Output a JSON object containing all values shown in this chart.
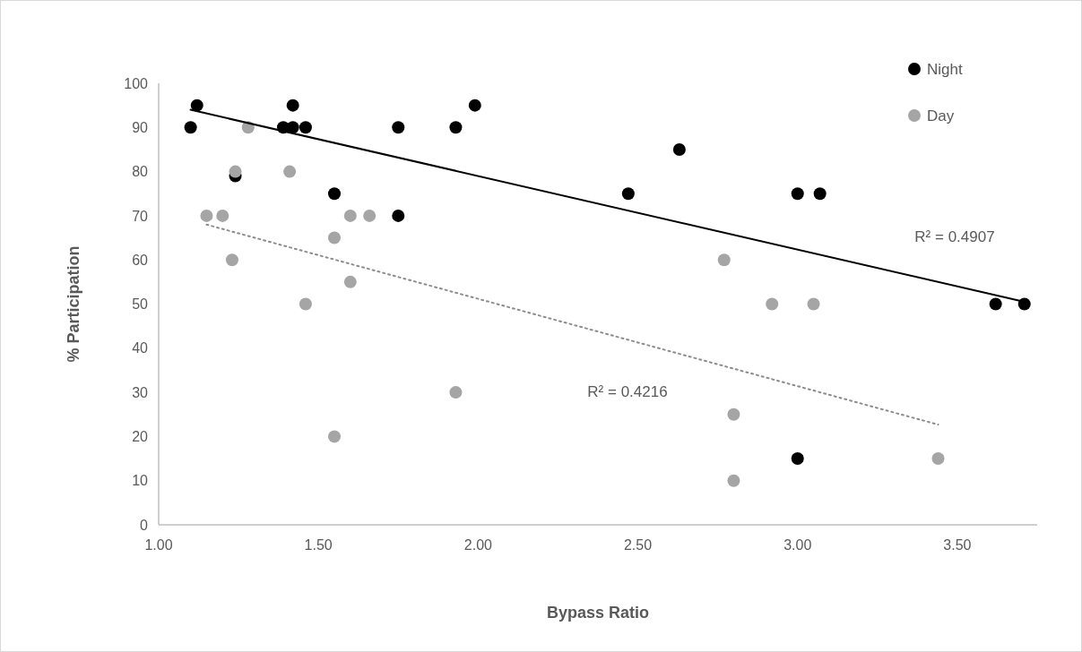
{
  "chart_data": {
    "type": "scatter",
    "xlabel": "Bypass Ratio",
    "ylabel": "% Participation",
    "xlim": [
      1,
      3.75
    ],
    "xticks": [
      {
        "value": 1,
        "label": "1.00"
      },
      {
        "value": 1.5,
        "label": "1.50"
      },
      {
        "value": 2,
        "label": "2.00"
      },
      {
        "value": 2.5,
        "label": "2.50"
      },
      {
        "value": 3,
        "label": "3.00"
      },
      {
        "value": 3.5,
        "label": "3.50"
      }
    ],
    "ylim": [
      0,
      100
    ],
    "yticks": [
      0,
      10,
      20,
      30,
      40,
      50,
      60,
      70,
      80,
      90,
      100
    ],
    "grid": false,
    "legend": "top right",
    "marker": "circle",
    "series": [
      {
        "name": "Night",
        "color": "#000000",
        "x": [
          1.1,
          1.12,
          1.24,
          1.39,
          1.42,
          1.42,
          1.46,
          1.55,
          1.75,
          1.75,
          1.93,
          1.99,
          2.47,
          2.63,
          3.0,
          3.07,
          3.0,
          3.62,
          3.71
        ],
        "values": [
          90,
          95,
          79,
          90,
          90,
          95,
          90,
          75,
          90,
          70,
          90,
          95,
          75,
          85,
          75,
          75,
          15,
          50,
          50
        ]
      },
      {
        "name": "Day",
        "color": "#a5a5a5",
        "x": [
          1.28,
          1.24,
          1.41,
          1.15,
          1.2,
          1.6,
          1.66,
          1.55,
          1.23,
          1.6,
          1.46,
          1.93,
          1.55,
          2.77,
          2.92,
          3.05,
          2.8,
          2.8,
          3.44
        ],
        "values": [
          90,
          80,
          80,
          70,
          70,
          70,
          70,
          65,
          60,
          55,
          50,
          30,
          20,
          60,
          50,
          50,
          25,
          10,
          15
        ]
      },
      {
        "type": "line",
        "color": "#000000",
        "line_style": "solid",
        "marker": "none",
        "x": [
          1.1,
          3.71
        ],
        "values": [
          94,
          50.5
        ]
      },
      {
        "type": "line",
        "color": "#8c8c8c",
        "line_style": "dotted",
        "marker": "none",
        "x": [
          1.15,
          3.44
        ],
        "values": [
          68,
          22.7
        ]
      }
    ],
    "annotations": [
      "R² = 0.4907",
      "R² = 0.4216"
    ]
  }
}
